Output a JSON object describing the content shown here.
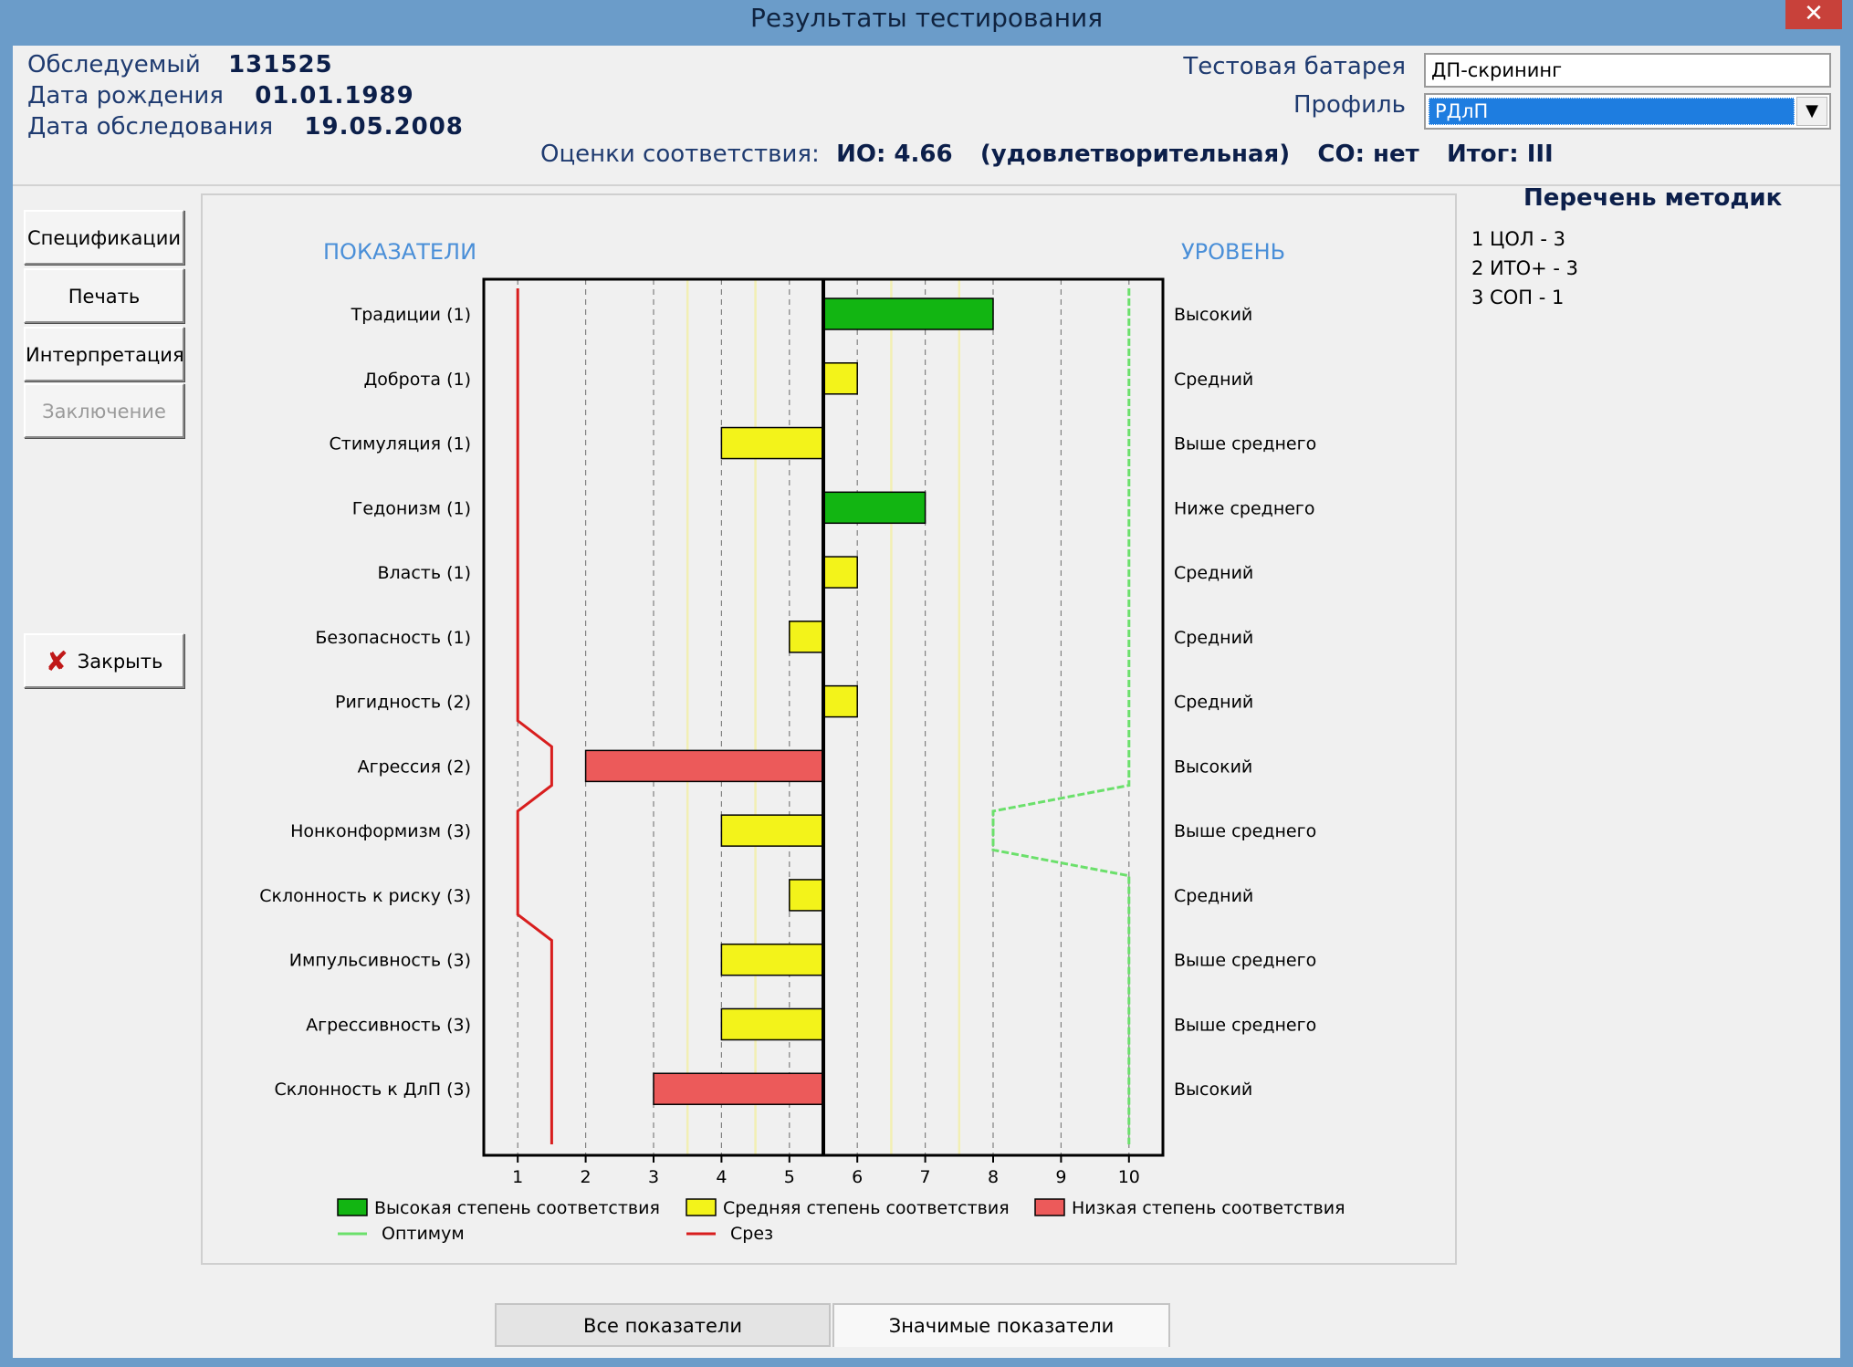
{
  "window": {
    "title": "Результаты тестирования",
    "close_glyph": "✕"
  },
  "subject": {
    "id_label": "Обследуемый",
    "id_value": "131525",
    "birth_label": "Дата рождения",
    "birth_value": "01.01.1989",
    "exam_label": "Дата обследования",
    "exam_value": "19.05.2008"
  },
  "battery": {
    "label": "Тестовая батарея",
    "value": "ДП-скрининг"
  },
  "profile": {
    "label": "Профиль",
    "value": "РДлП"
  },
  "assessment": {
    "label": "Оценки соответствия:",
    "io": "ИО: 4.66",
    "io_grade": "(удовлетворительная)",
    "co": "СО: нет",
    "total": "Итог: III"
  },
  "buttons": {
    "specs": "Спецификации",
    "print": "Печать",
    "interpret": "Интерпретация",
    "conclusion": "Заключение",
    "close": "Закрыть",
    "close_icon": "x-icon"
  },
  "methods": {
    "title": "Перечень методик",
    "items": [
      "1 ЦОЛ - 3",
      "2 ИТО+ - 3",
      "3 СОП - 1"
    ]
  },
  "tabs": {
    "all": "Все показатели",
    "significant": "Значимые показатели"
  },
  "colors": {
    "high": "#12b512",
    "medium": "#f3f31a",
    "low": "#ec5a5a",
    "optimum": "#6be06b",
    "cutoff": "#d81e1e",
    "header_blue": "#4a8fd8"
  },
  "chart_data": {
    "type": "bar",
    "left_header": "ПОКАЗАТЕЛИ",
    "right_header": "УРОВЕНЬ",
    "xlim": [
      0.5,
      10.5
    ],
    "center": 5.5,
    "x_ticks": [
      1,
      2,
      3,
      4,
      5,
      6,
      7,
      8,
      9,
      10
    ],
    "categories": [
      "Традиции  (1)",
      "Доброта  (1)",
      "Стимуляция  (1)",
      "Гедонизм  (1)",
      "Власть  (1)",
      "Безопасность  (1)",
      "Ригидность  (2)",
      "Агрессия  (2)",
      "Нонконформизм  (3)",
      "Склонность к риску  (3)",
      "Импульсивность  (3)",
      "Агрессивность  (3)",
      "Склонность к ДлП  (3)"
    ],
    "values": [
      8,
      6,
      4,
      7,
      6,
      5,
      6,
      2,
      4,
      5,
      4,
      4,
      3
    ],
    "match": [
      "high",
      "medium",
      "medium",
      "high",
      "medium",
      "medium",
      "medium",
      "low",
      "medium",
      "medium",
      "medium",
      "medium",
      "low"
    ],
    "levels": [
      "Высокий",
      "Средний",
      "Выше среднего",
      "Ниже среднего",
      "Средний",
      "Средний",
      "Средний",
      "Высокий",
      "Выше среднего",
      "Средний",
      "Выше среднего",
      "Выше среднего",
      "Высокий"
    ],
    "optimum": [
      10,
      10,
      10,
      10,
      10,
      10,
      10,
      10,
      8,
      10,
      10,
      10,
      10
    ],
    "cutoff": [
      1,
      1,
      1,
      1,
      1,
      1,
      1,
      1.5,
      1,
      1,
      1.5,
      1.5,
      1.5
    ],
    "legend": [
      {
        "key": "high",
        "label": "Высокая степень соответствия"
      },
      {
        "key": "medium",
        "label": "Средняя степень соответствия"
      },
      {
        "key": "low",
        "label": "Низкая степень соответствия"
      },
      {
        "key": "optimum",
        "label": "Оптимум"
      },
      {
        "key": "cutoff",
        "label": "Срез"
      }
    ]
  }
}
